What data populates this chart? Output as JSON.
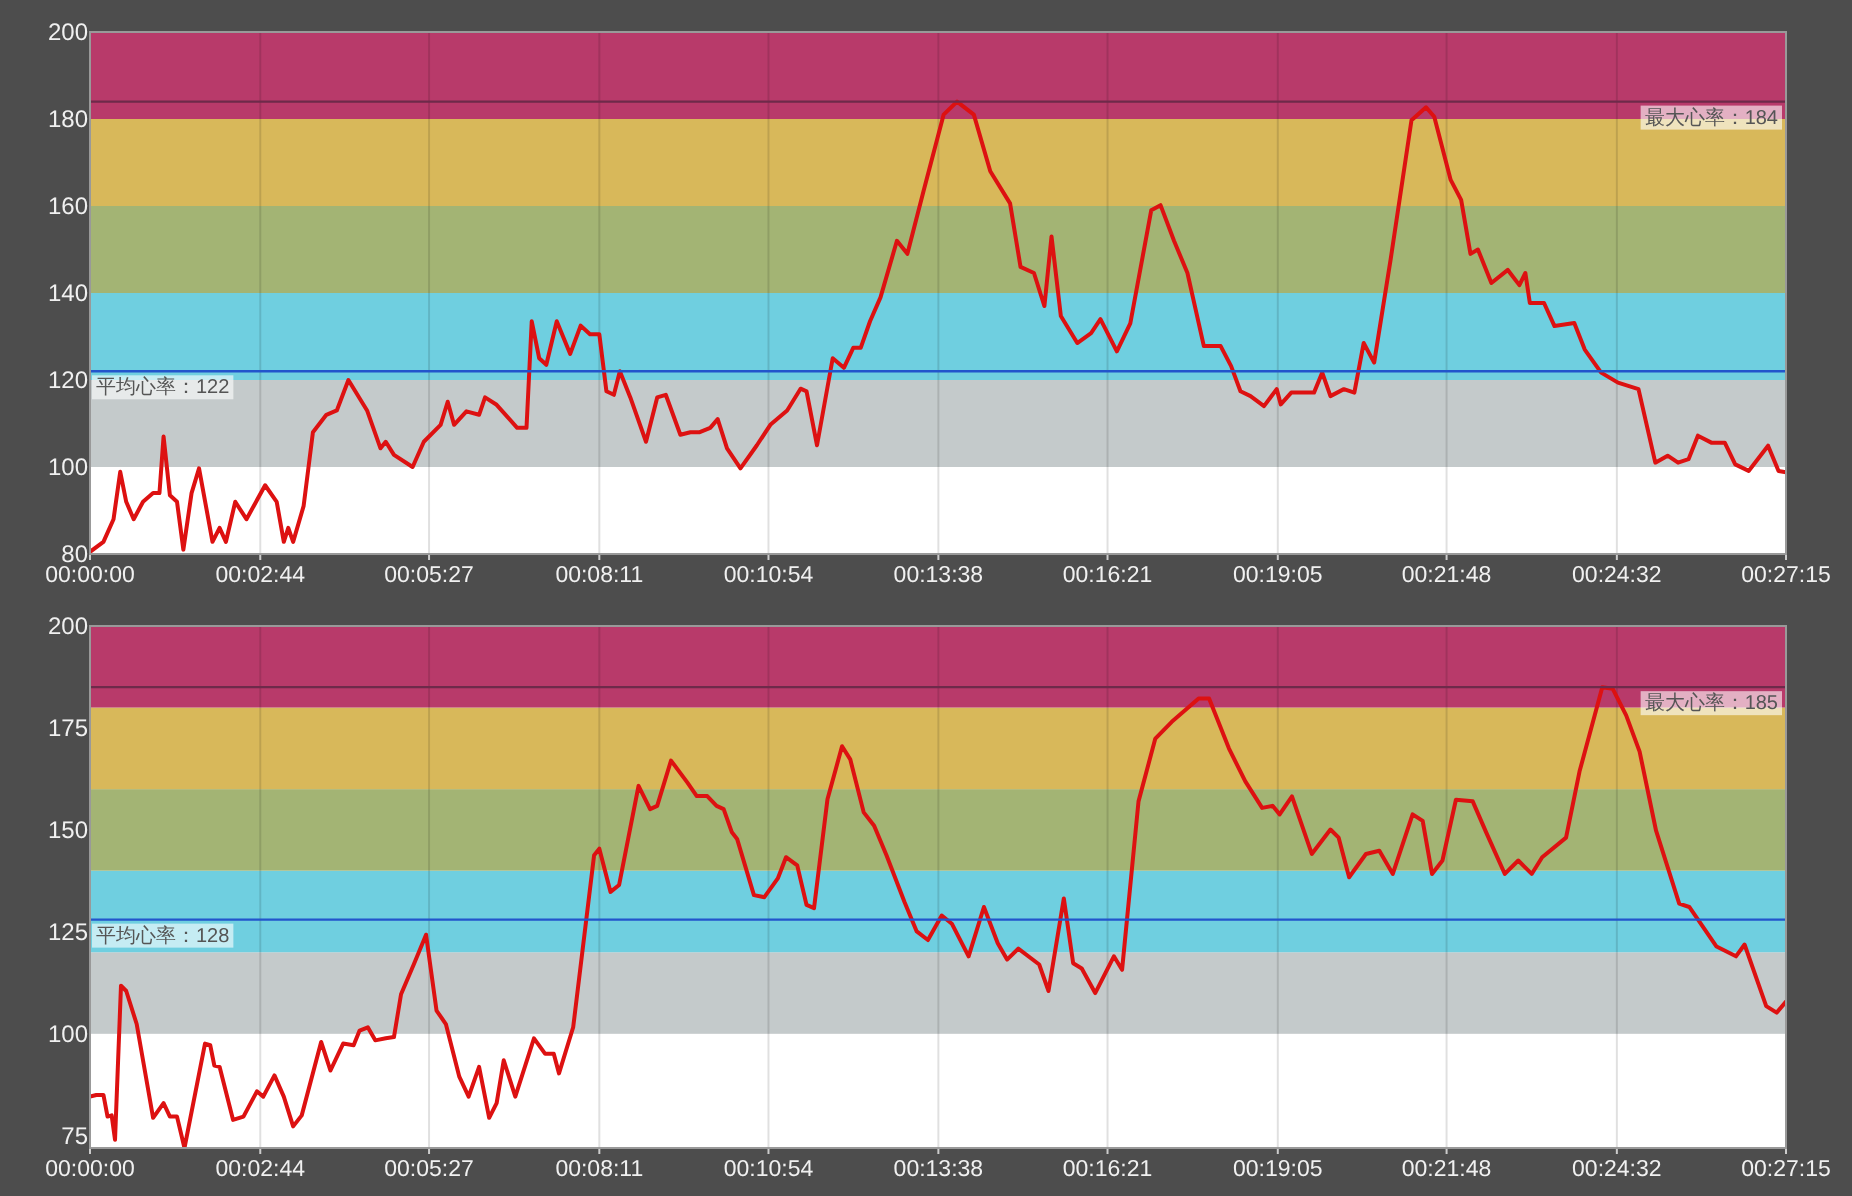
{
  "chart_data": [
    {
      "type": "line",
      "xlim": [
        0,
        0.4542
      ],
      "ylim": [
        80,
        200
      ],
      "yticks": [
        80,
        100,
        120,
        140,
        160,
        180,
        200
      ],
      "grid": "x",
      "xticks": [
        {
          "value": 0,
          "label": "00:00:00"
        },
        {
          "value": 0.0456,
          "label": "00:02:44"
        },
        {
          "value": 0.0908,
          "label": "00:05:27"
        },
        {
          "value": 0.1364,
          "label": "00:08:11"
        },
        {
          "value": 0.1817,
          "label": "00:10:54"
        },
        {
          "value": 0.2272,
          "label": "00:13:38"
        },
        {
          "value": 0.2725,
          "label": "00:16:21"
        },
        {
          "value": 0.3181,
          "label": "00:19:05"
        },
        {
          "value": 0.3633,
          "label": "00:21:48"
        },
        {
          "value": 0.4089,
          "label": "00:24:32"
        },
        {
          "value": 0.4542,
          "label": "00:27:15"
        }
      ],
      "bands": [
        {
          "axis": "y",
          "from": 100,
          "to": 120,
          "color": "#c4cacb"
        },
        {
          "axis": "y",
          "from": 120,
          "to": 140,
          "color": "#6fcfe0"
        },
        {
          "axis": "y",
          "from": 140,
          "to": 160,
          "color": "#a3b474"
        },
        {
          "axis": "y",
          "from": 160,
          "to": 180,
          "color": "#d8b85a"
        },
        {
          "axis": "y",
          "from": 180,
          "to": 200,
          "color": "#b83a6a"
        }
      ],
      "ref_lines": [
        {
          "axis": "y",
          "value": 184,
          "label": "最大心率：184",
          "color": "#6e2a4a"
        },
        {
          "axis": "y",
          "value": 122,
          "label": "平均心率：122",
          "color": "#2255cc"
        }
      ],
      "series": [
        {
          "color": "#dd1111",
          "x": [
            0,
            0.0036,
            0.0063,
            0.0081,
            0.0097,
            0.0117,
            0.0142,
            0.0169,
            0.0186,
            0.0197,
            0.0214,
            0.0233,
            0.025,
            0.0272,
            0.0292,
            0.0328,
            0.0347,
            0.0364,
            0.0389,
            0.0419,
            0.0469,
            0.05,
            0.0519,
            0.0531,
            0.0544,
            0.0572,
            0.0597,
            0.0633,
            0.0661,
            0.0692,
            0.0742,
            0.0778,
            0.0792,
            0.0814,
            0.0864,
            0.0894,
            0.0939,
            0.0958,
            0.0975,
            0.1008,
            0.1042,
            0.1058,
            0.1089,
            0.1144,
            0.1169,
            0.1183,
            0.1203,
            0.1222,
            0.125,
            0.1286,
            0.1314,
            0.1339,
            0.1364,
            0.1383,
            0.1403,
            0.1419,
            0.1447,
            0.1489,
            0.1519,
            0.1542,
            0.1581,
            0.1608,
            0.1633,
            0.1661,
            0.1681,
            0.1706,
            0.1742,
            0.1786,
            0.1822,
            0.1867,
            0.1903,
            0.1919,
            0.1947,
            0.1989,
            0.2019,
            0.2044,
            0.2064,
            0.2089,
            0.2117,
            0.2161,
            0.2189,
            0.2233,
            0.2286,
            0.2322,
            0.2367,
            0.2411,
            0.2464,
            0.2492,
            0.2528,
            0.2556,
            0.2575,
            0.26,
            0.2644,
            0.2681,
            0.2706,
            0.275,
            0.2786,
            0.2842,
            0.2867,
            0.2903,
            0.2939,
            0.2983,
            0.3028,
            0.3056,
            0.3081,
            0.3108,
            0.3144,
            0.3178,
            0.3189,
            0.3217,
            0.3278,
            0.33,
            0.3322,
            0.3358,
            0.3386,
            0.3411,
            0.3439,
            0.3483,
            0.3539,
            0.3578,
            0.36,
            0.3644,
            0.3672,
            0.3697,
            0.3717,
            0.3753,
            0.3797,
            0.3828,
            0.3844,
            0.3856,
            0.3894,
            0.3922,
            0.3975,
            0.4003,
            0.4047,
            0.4092,
            0.4147,
            0.4192,
            0.4225,
            0.4253,
            0.4281,
            0.4306,
            0.4342,
            0.4378,
            0.4406,
            0.4442,
            0.4494,
            0.4522,
            0.4542
          ],
          "values": [
            80.5,
            82.8,
            88,
            98.9,
            92,
            88,
            92,
            94,
            94,
            107,
            93.5,
            92,
            81,
            94,
            99.7,
            82.8,
            86,
            82.8,
            92,
            88,
            95.8,
            92,
            82.8,
            86,
            82.8,
            91,
            108,
            112,
            113,
            120,
            113,
            104.3,
            105.8,
            102.8,
            100,
            105.8,
            109.7,
            115,
            109.7,
            112.8,
            112,
            116,
            114.3,
            109,
            109,
            133.5,
            125,
            123.5,
            133.5,
            126,
            132.5,
            130.5,
            130.5,
            117.4,
            116.6,
            122,
            116,
            105.8,
            116,
            116.6,
            107.4,
            108,
            108,
            109,
            111,
            104.3,
            99.7,
            105,
            109.7,
            113,
            118,
            117.4,
            105,
            125,
            122.8,
            127.4,
            127.4,
            133.5,
            139,
            152,
            149,
            163.7,
            181,
            184,
            181,
            168,
            160.6,
            146,
            144.6,
            137,
            153,
            134.7,
            128.5,
            130.8,
            134,
            126.6,
            133,
            159,
            160.2,
            152,
            144.6,
            127.8,
            127.8,
            123.2,
            117.4,
            116.3,
            114,
            117.9,
            114.4,
            117.1,
            117.1,
            121.7,
            116.3,
            117.9,
            117.1,
            128.5,
            124,
            147.6,
            179.7,
            182.7,
            180.5,
            166,
            161.4,
            149,
            150,
            142.3,
            145.3,
            141.8,
            144.6,
            137.7,
            137.7,
            132.4,
            133.1,
            127,
            121.7,
            119.4,
            117.9,
            101,
            102.6,
            101,
            101.8,
            107.2,
            105.6,
            105.6,
            100.6,
            99.1,
            104.9,
            99.1,
            98.8
          ]
        }
      ]
    },
    {
      "type": "line",
      "xlim": [
        0,
        0.4542
      ],
      "ylim": [
        72,
        200
      ],
      "yticks": [
        75,
        100,
        125,
        150,
        175,
        200
      ],
      "grid": "x",
      "xticks": [
        {
          "value": 0,
          "label": "00:00:00"
        },
        {
          "value": 0.0456,
          "label": "00:02:44"
        },
        {
          "value": 0.0908,
          "label": "00:05:27"
        },
        {
          "value": 0.1364,
          "label": "00:08:11"
        },
        {
          "value": 0.1817,
          "label": "00:10:54"
        },
        {
          "value": 0.2272,
          "label": "00:13:38"
        },
        {
          "value": 0.2725,
          "label": "00:16:21"
        },
        {
          "value": 0.3181,
          "label": "00:19:05"
        },
        {
          "value": 0.3633,
          "label": "00:21:48"
        },
        {
          "value": 0.4089,
          "label": "00:24:32"
        },
        {
          "value": 0.4542,
          "label": "00:27:15"
        }
      ],
      "bands": [
        {
          "axis": "y",
          "from": 100,
          "to": 120,
          "color": "#c4cacb"
        },
        {
          "axis": "y",
          "from": 120,
          "to": 140,
          "color": "#6fcfe0"
        },
        {
          "axis": "y",
          "from": 140,
          "to": 160,
          "color": "#a3b474"
        },
        {
          "axis": "y",
          "from": 160,
          "to": 180,
          "color": "#d8b85a"
        },
        {
          "axis": "y",
          "from": 180,
          "to": 200,
          "color": "#b83a6a"
        }
      ],
      "ref_lines": [
        {
          "axis": "y",
          "value": 185,
          "label": "最大心率：185",
          "color": "#6e2a4a"
        },
        {
          "axis": "y",
          "value": 128,
          "label": "平均心率：128",
          "color": "#2255cc"
        }
      ],
      "series": [
        {
          "color": "#dd1111",
          "x": [
            0,
            0.0017,
            0.0036,
            0.0047,
            0.0058,
            0.0067,
            0.0083,
            0.0097,
            0.0125,
            0.0169,
            0.0197,
            0.0214,
            0.0233,
            0.0253,
            0.0308,
            0.0322,
            0.0333,
            0.0347,
            0.0383,
            0.0411,
            0.0447,
            0.0464,
            0.0494,
            0.0519,
            0.0544,
            0.0567,
            0.0619,
            0.0644,
            0.0678,
            0.0706,
            0.0722,
            0.0744,
            0.0764,
            0.0792,
            0.0814,
            0.0833,
            0.0867,
            0.09,
            0.0928,
            0.0953,
            0.0989,
            0.1014,
            0.1042,
            0.1069,
            0.1089,
            0.1108,
            0.1139,
            0.1189,
            0.1219,
            0.1242,
            0.1256,
            0.1294,
            0.135,
            0.1364,
            0.1394,
            0.1417,
            0.1469,
            0.15,
            0.1519,
            0.1556,
            0.16,
            0.1625,
            0.1653,
            0.1678,
            0.1697,
            0.1719,
            0.1733,
            0.1778,
            0.1806,
            0.1842,
            0.1864,
            0.1894,
            0.1919,
            0.1939,
            0.1975,
            0.2014,
            0.2036,
            0.2072,
            0.21,
            0.2133,
            0.2181,
            0.2214,
            0.2244,
            0.2281,
            0.2308,
            0.2353,
            0.2394,
            0.2431,
            0.2456,
            0.2486,
            0.2542,
            0.2567,
            0.2608,
            0.2633,
            0.2656,
            0.2692,
            0.2742,
            0.2764,
            0.2808,
            0.2853,
            0.2897,
            0.2969,
            0.2997,
            0.305,
            0.3094,
            0.3139,
            0.3167,
            0.3186,
            0.3219,
            0.3272,
            0.3322,
            0.3344,
            0.3372,
            0.3417,
            0.3453,
            0.3489,
            0.3542,
            0.3569,
            0.3594,
            0.3622,
            0.3658,
            0.3703,
            0.3739,
            0.3789,
            0.3825,
            0.3861,
            0.3889,
            0.3953,
            0.3989,
            0.405,
            0.4078,
            0.4114,
            0.415,
            0.4194,
            0.4256,
            0.4283,
            0.4356,
            0.4408,
            0.4431,
            0.4489,
            0.4517,
            0.4542
          ],
          "values": [
            84.6,
            85,
            85,
            79.7,
            80,
            74,
            111.8,
            110.5,
            102.4,
            79.4,
            83,
            79.7,
            79.7,
            72,
            97.6,
            97.2,
            92.2,
            91.9,
            78.9,
            79.7,
            85.9,
            84.6,
            89.8,
            84.6,
            77.3,
            80,
            98,
            91,
            97.6,
            97.2,
            100.8,
            101.6,
            98.4,
            98.9,
            99.2,
            109.7,
            117,
            124.3,
            105.7,
            102.4,
            89.5,
            84.6,
            91.9,
            79.4,
            83,
            93.5,
            84.6,
            98.9,
            95.1,
            95.1,
            90.3,
            101.6,
            143.8,
            145.4,
            134.8,
            136.5,
            160.8,
            155.1,
            155.9,
            167,
            161.6,
            158.3,
            158.3,
            155.9,
            155.1,
            149.4,
            147.8,
            134,
            133.5,
            138.1,
            143.3,
            141.3,
            131.6,
            130.8,
            157.5,
            170.5,
            167.3,
            154.3,
            151,
            143.8,
            132.4,
            125.1,
            123,
            129,
            127,
            119,
            131.1,
            122.2,
            118.2,
            120.9,
            117,
            110.5,
            133.2,
            117.3,
            116,
            110,
            119,
            115.7,
            157,
            172.4,
            176.5,
            182.2,
            182.2,
            170,
            161.9,
            155.4,
            155.9,
            153.8,
            158.2,
            144.1,
            150.1,
            148.1,
            138.4,
            144.1,
            144.9,
            139.2,
            153.8,
            152.2,
            139.2,
            142.5,
            157.4,
            157,
            149.4,
            139.2,
            142.5,
            139.2,
            143.3,
            148.1,
            164.3,
            185,
            184.6,
            178.1,
            169.2,
            149.8,
            131.9,
            131.1,
            121.4,
            119,
            121.9,
            106.8,
            105.2,
            107.9
          ]
        }
      ]
    }
  ]
}
